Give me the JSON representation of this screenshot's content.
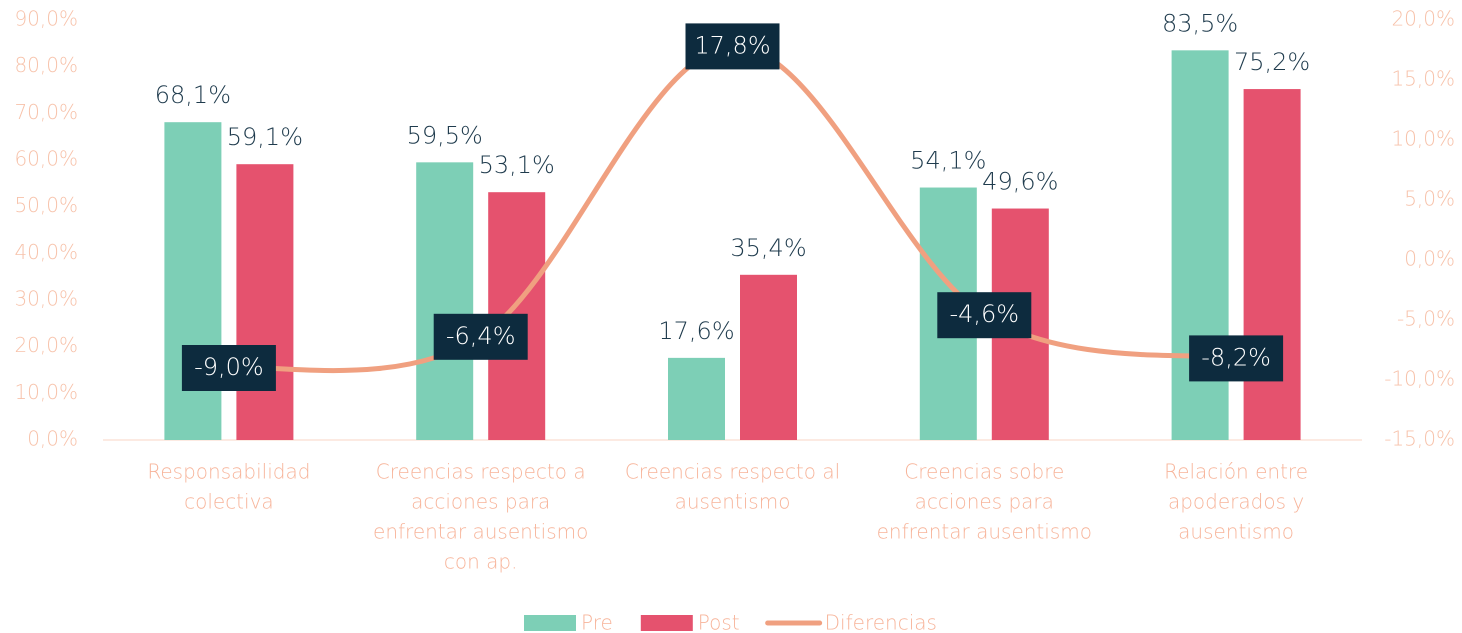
{
  "chart_data": {
    "type": "bar_line",
    "categories": [
      [
        "Responsabilidad",
        "colectiva"
      ],
      [
        "Creencias respecto a",
        "acciones para",
        "enfrentar  ausentismo",
        "con ap."
      ],
      [
        "Creencias respecto al",
        "ausentismo"
      ],
      [
        "Creencias sobre",
        "acciones para",
        "enfrentar  ausentismo"
      ],
      [
        "Relación entre",
        "apoderados y",
        "ausentismo"
      ]
    ],
    "series": [
      {
        "name": "Pre",
        "type": "bar",
        "color": "#7dcfb6",
        "values": [
          68.1,
          59.5,
          17.6,
          54.1,
          83.5
        ],
        "value_labels": [
          "68,1%",
          "59,5%",
          "17,6%",
          "54,1%",
          "83,5%"
        ]
      },
      {
        "name": "Post",
        "type": "bar",
        "color": "#e5526e",
        "values": [
          59.1,
          53.1,
          35.4,
          49.6,
          75.2
        ],
        "value_labels": [
          "59,1%",
          "53,1%",
          "35,4%",
          "49,6%",
          "75,2%"
        ]
      },
      {
        "name": "Diferencias",
        "type": "line",
        "axis": "y2",
        "color": "#f0a080",
        "values": [
          -9.0,
          -6.4,
          17.8,
          -4.6,
          -8.2
        ],
        "value_labels": [
          "-9,0%",
          "-6,4%",
          "17,8%",
          "-4,6%",
          "-8,2%"
        ]
      }
    ],
    "ylim": [
      0,
      90
    ],
    "yticks": [
      {
        "value": 0,
        "label": "0,0%"
      },
      {
        "value": 10,
        "label": "10,0%"
      },
      {
        "value": 20,
        "label": "20,0%"
      },
      {
        "value": 30,
        "label": "30,0%"
      },
      {
        "value": 40,
        "label": "40,0%"
      },
      {
        "value": 50,
        "label": "50,0%"
      },
      {
        "value": 60,
        "label": "60,0%"
      },
      {
        "value": 70,
        "label": "70,0%"
      },
      {
        "value": 80,
        "label": "80,0%"
      },
      {
        "value": 90,
        "label": "90,0%"
      }
    ],
    "y2lim": [
      -15,
      20
    ],
    "y2ticks": [
      {
        "value": -15,
        "label": "-15,0%"
      },
      {
        "value": -10,
        "label": "-10,0%"
      },
      {
        "value": -5,
        "label": "-5,0%"
      },
      {
        "value": 0,
        "label": "0,0%"
      },
      {
        "value": 5,
        "label": "5,0%"
      },
      {
        "value": 10,
        "label": "10,0%"
      },
      {
        "value": 15,
        "label": "15,0%"
      },
      {
        "value": 20,
        "label": "20,0%"
      }
    ],
    "legend": "bottom"
  }
}
